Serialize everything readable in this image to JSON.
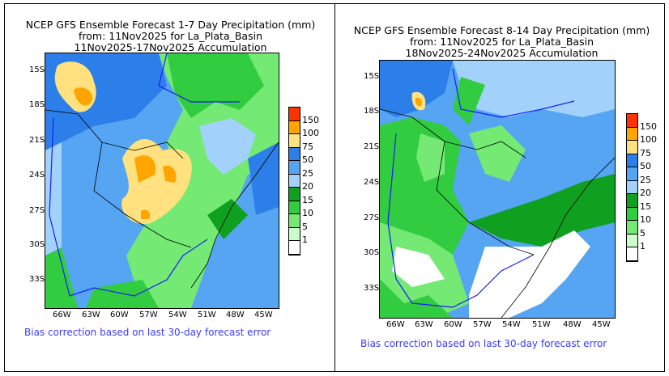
{
  "panels": [
    {
      "title_line1": "NCEP GFS Ensemble Forecast 1-7 Day Precipitation (mm)",
      "title_line2": "from: 11Nov2025   for La_Plata_Basin",
      "title_line3": "11Nov2025-17Nov2025 Accumulation",
      "bias_note": "Bias correction based on last 30-day forecast error"
    },
    {
      "title_line1": "NCEP GFS Ensemble Forecast 8-14 Day Precipitation (mm)",
      "title_line2": "from: 11Nov2025   for La_Plata_Basin",
      "title_line3": "18Nov2025-24Nov2025 Accumulation",
      "bias_note": "Bias correction based on last 30-day forecast error"
    }
  ],
  "lat_labels": [
    "15S",
    "18S",
    "21S",
    "24S",
    "27S",
    "30S",
    "33S"
  ],
  "lon_labels": [
    "66W",
    "63W",
    "60W",
    "57W",
    "54W",
    "51W",
    "48W",
    "45W"
  ],
  "legend": {
    "labels": [
      "150",
      "100",
      "75",
      "50",
      "25",
      "20",
      "15",
      "10",
      "5",
      "1"
    ],
    "colors": [
      "#ff3300",
      "#ffa500",
      "#ffe27f",
      "#2c7fe8",
      "#55a5f2",
      "#a2d2fb",
      "#10a020",
      "#32cc40",
      "#74ea74",
      "#caffca",
      "#ffffff"
    ]
  }
}
